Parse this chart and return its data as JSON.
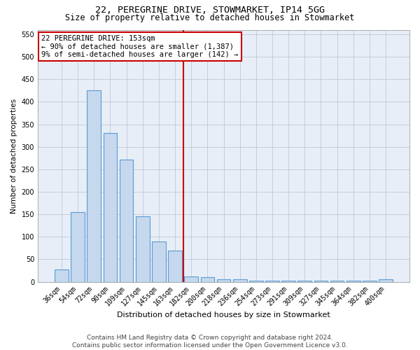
{
  "title": "22, PEREGRINE DRIVE, STOWMARKET, IP14 5GG",
  "subtitle": "Size of property relative to detached houses in Stowmarket",
  "xlabel": "Distribution of detached houses by size in Stowmarket",
  "ylabel": "Number of detached properties",
  "bar_labels": [
    "36sqm",
    "54sqm",
    "72sqm",
    "90sqm",
    "109sqm",
    "127sqm",
    "145sqm",
    "163sqm",
    "182sqm",
    "200sqm",
    "218sqm",
    "236sqm",
    "254sqm",
    "273sqm",
    "291sqm",
    "309sqm",
    "327sqm",
    "345sqm",
    "364sqm",
    "382sqm",
    "400sqm"
  ],
  "bar_values": [
    28,
    155,
    425,
    330,
    272,
    145,
    90,
    70,
    12,
    10,
    5,
    5,
    3,
    3,
    2,
    2,
    2,
    2,
    2,
    2,
    5
  ],
  "bar_color": "#c5d8ed",
  "bar_edge_color": "#5b9bd5",
  "grid_color": "#c0c8d8",
  "bg_color": "#e8eef7",
  "vline_x": 7.5,
  "vline_color": "#cc0000",
  "annotation_text_line1": "22 PEREGRINE DRIVE: 153sqm",
  "annotation_text_line2": "← 90% of detached houses are smaller (1,387)",
  "annotation_text_line3": "9% of semi-detached houses are larger (142) →",
  "annotation_box_color": "#ffffff",
  "annotation_box_edge": "#cc0000",
  "footer_line1": "Contains HM Land Registry data © Crown copyright and database right 2024.",
  "footer_line2": "Contains public sector information licensed under the Open Government Licence v3.0.",
  "ylim": [
    0,
    560
  ],
  "yticks": [
    0,
    50,
    100,
    150,
    200,
    250,
    300,
    350,
    400,
    450,
    500,
    550
  ],
  "title_fontsize": 9.5,
  "subtitle_fontsize": 8.5,
  "xlabel_fontsize": 8,
  "ylabel_fontsize": 7.5,
  "tick_fontsize": 7,
  "annotation_fontsize": 7.5,
  "footer_fontsize": 6.5
}
